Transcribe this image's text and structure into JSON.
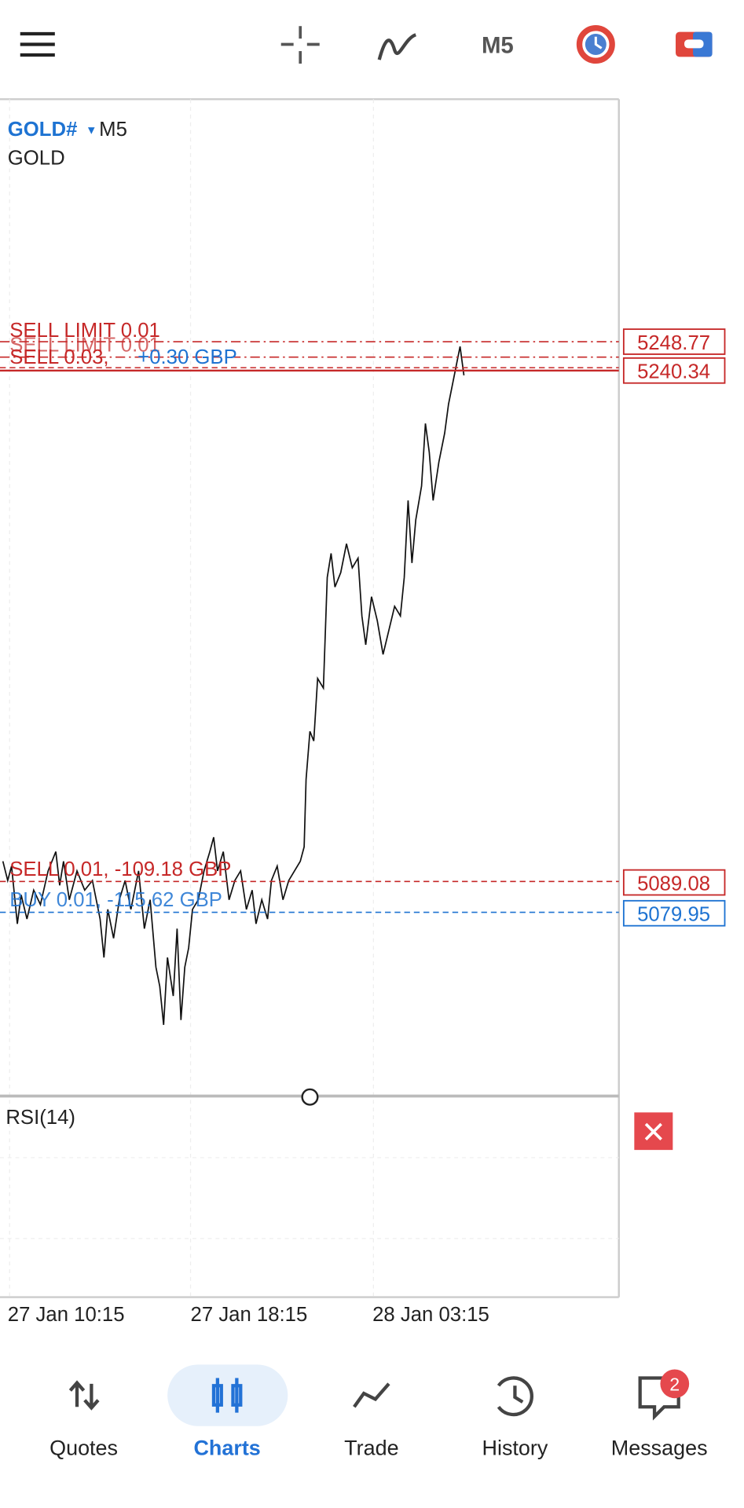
{
  "toolbar": {
    "timeframe": "M5"
  },
  "chart": {
    "symbol": "GOLD#",
    "timeframe": "M5",
    "description": "GOLD",
    "orders_top": {
      "sell_limit_1": "SELL LIMIT 0.01",
      "sell_limit_2": "SELL LIMIT 0.01",
      "sell_position": "SELL 0.03,",
      "sell_profit": "+0.30 GBP",
      "price_1": "5248.77",
      "price_2": "5240.34"
    },
    "orders_bottom": {
      "sell_label": "SELL 0.01, -109.18 GBP",
      "buy_label": "BUY 0.01, -115.62 GBP",
      "sell_price": "5089.08",
      "buy_price": "5079.95"
    },
    "indicator": "RSI(14)",
    "time_labels": [
      "27 Jan 10:15",
      "27 Jan 18:15",
      "28 Jan 03:15"
    ]
  },
  "nav": {
    "items": [
      "Quotes",
      "Charts",
      "Trade",
      "History",
      "Messages"
    ],
    "badge": "2"
  }
}
